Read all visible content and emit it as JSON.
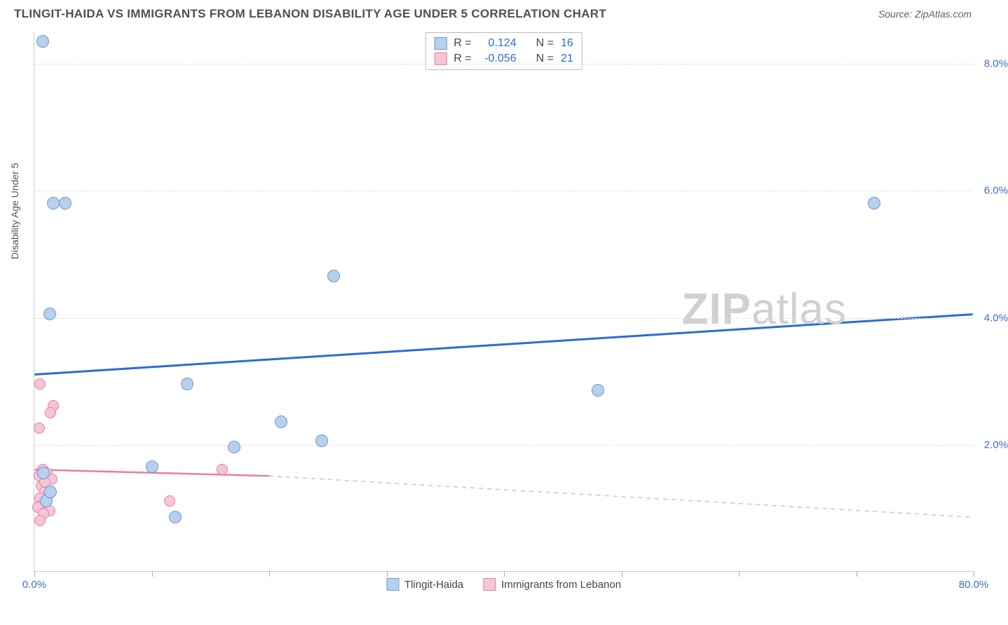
{
  "header": {
    "title": "TLINGIT-HAIDA VS IMMIGRANTS FROM LEBANON DISABILITY AGE UNDER 5 CORRELATION CHART",
    "source": "Source: ZipAtlas.com"
  },
  "yaxis": {
    "label": "Disability Age Under 5",
    "min": 0.0,
    "max": 8.5,
    "ticks": [
      {
        "v": 2.0,
        "label": "2.0%"
      },
      {
        "v": 4.0,
        "label": "4.0%"
      },
      {
        "v": 6.0,
        "label": "6.0%"
      },
      {
        "v": 8.0,
        "label": "8.0%"
      }
    ],
    "tick_color": "#3b6fc9"
  },
  "xaxis": {
    "min": 0.0,
    "max": 80.0,
    "tick_positions": [
      0,
      10,
      20,
      30,
      40,
      50,
      60,
      70,
      80
    ],
    "labels": [
      {
        "v": 0.0,
        "label": "0.0%",
        "color": "#3b6fc9"
      },
      {
        "v": 80.0,
        "label": "80.0%",
        "color": "#3b6fc9"
      }
    ]
  },
  "series": {
    "blue": {
      "name": "Tlingit-Haida",
      "fill": "#b8d0ec",
      "stroke": "#6a9ad4",
      "marker_radius": 9,
      "points": [
        {
          "x": 0.7,
          "y": 8.35
        },
        {
          "x": 1.6,
          "y": 5.8
        },
        {
          "x": 2.6,
          "y": 5.8
        },
        {
          "x": 71.5,
          "y": 5.8
        },
        {
          "x": 25.5,
          "y": 4.65
        },
        {
          "x": 1.3,
          "y": 4.05
        },
        {
          "x": 13.0,
          "y": 2.95
        },
        {
          "x": 48.0,
          "y": 2.85
        },
        {
          "x": 21.0,
          "y": 2.35
        },
        {
          "x": 17.0,
          "y": 1.95
        },
        {
          "x": 24.5,
          "y": 2.05
        },
        {
          "x": 10.0,
          "y": 1.65
        },
        {
          "x": 0.8,
          "y": 1.55
        },
        {
          "x": 1.0,
          "y": 1.1
        },
        {
          "x": 1.4,
          "y": 1.25
        },
        {
          "x": 12.0,
          "y": 0.85
        }
      ],
      "trend": {
        "x1": 0,
        "y1": 3.1,
        "x2": 80,
        "y2": 4.05,
        "stroke": "#2b6cd4",
        "width": 3
      },
      "R": "0.124",
      "N": "16"
    },
    "pink": {
      "name": "Immigrants from Lebanon",
      "fill": "#f5c6d6",
      "stroke": "#e97ca4",
      "marker_radius": 8,
      "points": [
        {
          "x": 0.5,
          "y": 2.95
        },
        {
          "x": 1.6,
          "y": 2.6
        },
        {
          "x": 1.4,
          "y": 2.5
        },
        {
          "x": 0.4,
          "y": 2.25
        },
        {
          "x": 0.7,
          "y": 1.6
        },
        {
          "x": 1.1,
          "y": 1.55
        },
        {
          "x": 0.4,
          "y": 1.5
        },
        {
          "x": 1.5,
          "y": 1.45
        },
        {
          "x": 0.6,
          "y": 1.35
        },
        {
          "x": 0.9,
          "y": 1.25
        },
        {
          "x": 1.2,
          "y": 1.2
        },
        {
          "x": 0.5,
          "y": 1.15
        },
        {
          "x": 1.0,
          "y": 1.1
        },
        {
          "x": 0.7,
          "y": 1.05
        },
        {
          "x": 0.3,
          "y": 1.0
        },
        {
          "x": 1.3,
          "y": 0.95
        },
        {
          "x": 0.8,
          "y": 0.9
        },
        {
          "x": 0.5,
          "y": 0.8
        },
        {
          "x": 11.5,
          "y": 1.1
        },
        {
          "x": 16.0,
          "y": 1.6
        },
        {
          "x": 0.9,
          "y": 1.4
        }
      ],
      "trend_solid": {
        "x1": 0,
        "y1": 1.6,
        "x2": 20,
        "y2": 1.5,
        "stroke": "#e97ca4",
        "width": 2.5
      },
      "trend_dash": {
        "x1": 20,
        "y1": 1.5,
        "x2": 80,
        "y2": 0.85,
        "stroke": "#f0b3c6",
        "width": 1.5,
        "dash": "6,6"
      },
      "R": "-0.056",
      "N": "21"
    }
  },
  "legend_top": {
    "r_label": "R =",
    "n_label": "N ="
  },
  "watermark": {
    "bold": "ZIP",
    "rest": "atlas"
  },
  "colors": {
    "grid": "#dddddd",
    "axis": "#cccccc",
    "text": "#505050",
    "r_blue": "#2b6cd4"
  }
}
